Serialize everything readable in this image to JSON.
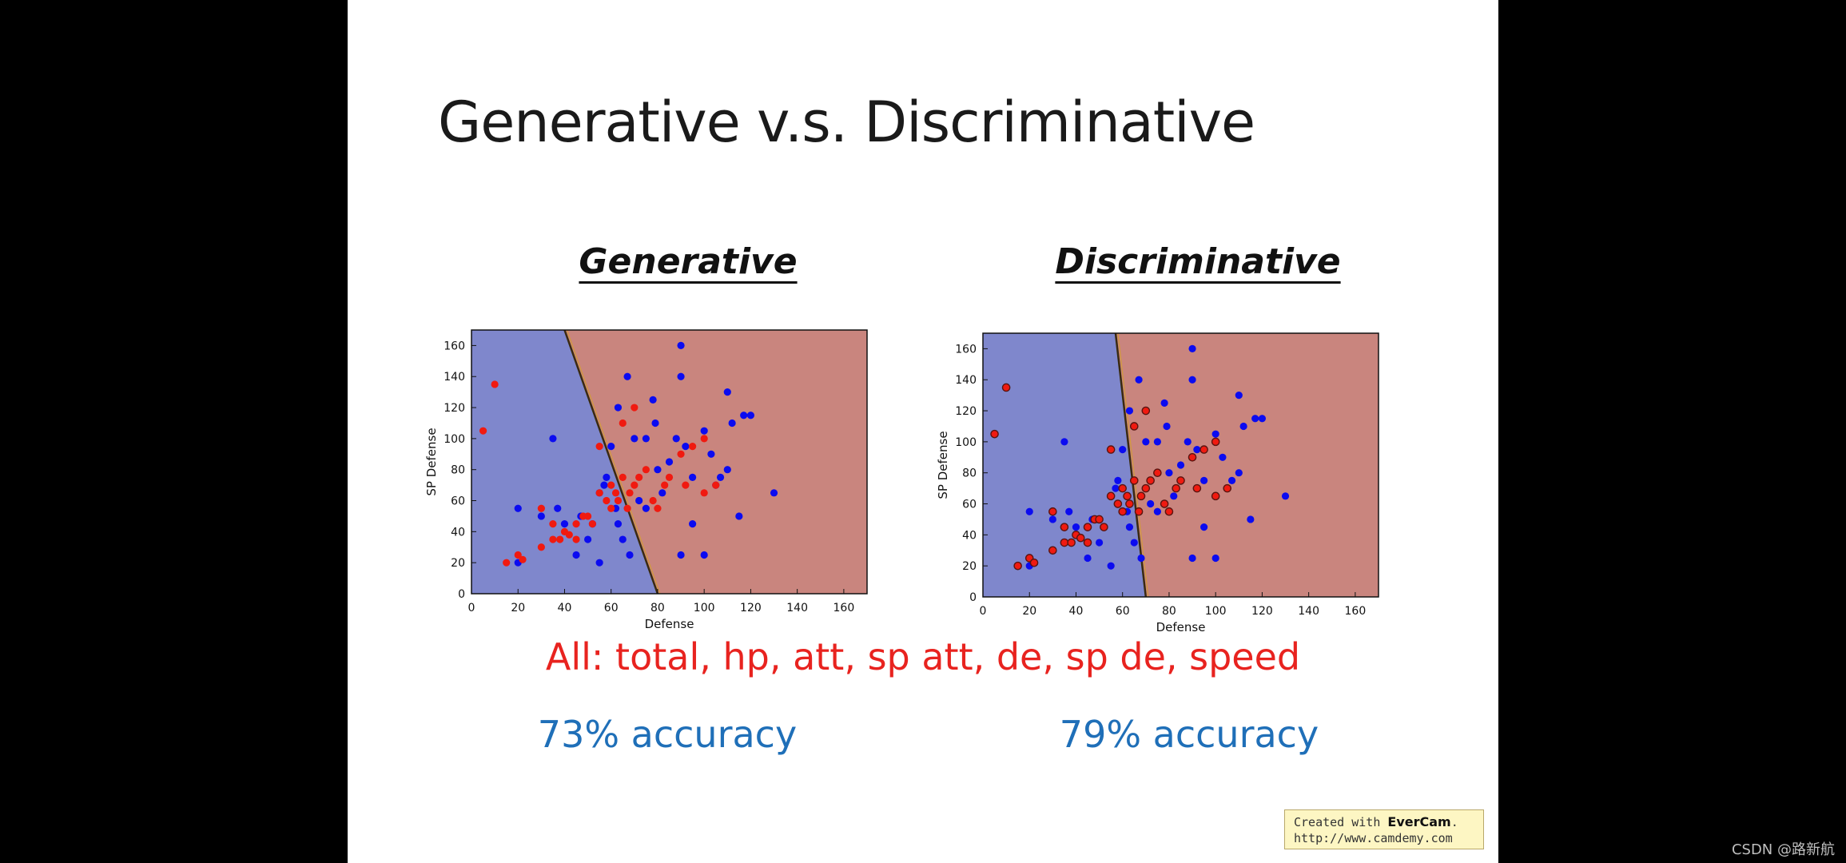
{
  "slide": {
    "title": "Generative v.s. Discriminative",
    "features_text": "All: total, hp, att, sp att, de, sp de, speed",
    "badge_line1_prefix": "Created with ",
    "badge_brand": "EverCam",
    "badge_line1_suffix": ".",
    "badge_url": "http://www.camdemy.com",
    "watermark": "CSDN @路新航"
  },
  "colors": {
    "blue_region": "#7f87cc",
    "red_region": "#c9857e",
    "blue_point": "#0b0bf0",
    "red_point": "#f01a10",
    "accuracy_text": "#1f6fb8",
    "features_text": "#e8231f"
  },
  "chart_data": [
    {
      "type": "scatter",
      "title": "Generative",
      "accuracy_label": "73% accuracy",
      "xlabel": "Defense",
      "ylabel": "SP Defense",
      "xlim": [
        0,
        170
      ],
      "ylim": [
        0,
        170
      ],
      "xticks": [
        "0",
        "20",
        "40",
        "60",
        "80",
        "100",
        "120",
        "140",
        "160"
      ],
      "yticks": [
        "0",
        "20",
        "40",
        "60",
        "80",
        "100",
        "120",
        "140",
        "160"
      ],
      "decision_boundary": [
        [
          40,
          170
        ],
        [
          80,
          0
        ]
      ],
      "regions": {
        "left": "blue",
        "right": "red"
      },
      "series": [
        {
          "name": "class blue",
          "color": "blue",
          "points": [
            [
              20,
              20
            ],
            [
              20,
              55
            ],
            [
              30,
              50
            ],
            [
              35,
              100
            ],
            [
              37,
              55
            ],
            [
              40,
              45
            ],
            [
              45,
              25
            ],
            [
              47,
              50
            ],
            [
              50,
              35
            ],
            [
              52,
              45
            ],
            [
              55,
              20
            ],
            [
              55,
              65
            ],
            [
              57,
              70
            ],
            [
              58,
              75
            ],
            [
              60,
              95
            ],
            [
              62,
              55
            ],
            [
              63,
              120
            ],
            [
              63,
              45
            ],
            [
              65,
              35
            ],
            [
              67,
              140
            ],
            [
              68,
              25
            ],
            [
              70,
              100
            ],
            [
              72,
              60
            ],
            [
              75,
              100
            ],
            [
              75,
              55
            ],
            [
              78,
              125
            ],
            [
              79,
              110
            ],
            [
              80,
              80
            ],
            [
              82,
              65
            ],
            [
              85,
              85
            ],
            [
              88,
              100
            ],
            [
              90,
              160
            ],
            [
              90,
              140
            ],
            [
              90,
              25
            ],
            [
              92,
              95
            ],
            [
              95,
              45
            ],
            [
              95,
              75
            ],
            [
              100,
              25
            ],
            [
              100,
              105
            ],
            [
              103,
              90
            ],
            [
              105,
              70
            ],
            [
              107,
              75
            ],
            [
              110,
              130
            ],
            [
              110,
              80
            ],
            [
              112,
              110
            ],
            [
              115,
              50
            ],
            [
              117,
              115
            ],
            [
              120,
              115
            ],
            [
              130,
              65
            ]
          ]
        },
        {
          "name": "class red",
          "color": "red",
          "points": [
            [
              5,
              105
            ],
            [
              10,
              135
            ],
            [
              15,
              20
            ],
            [
              20,
              25
            ],
            [
              22,
              22
            ],
            [
              30,
              30
            ],
            [
              30,
              55
            ],
            [
              35,
              35
            ],
            [
              35,
              45
            ],
            [
              38,
              35
            ],
            [
              40,
              40
            ],
            [
              42,
              38
            ],
            [
              45,
              45
            ],
            [
              45,
              35
            ],
            [
              48,
              50
            ],
            [
              50,
              50
            ],
            [
              52,
              45
            ],
            [
              55,
              95
            ],
            [
              55,
              65
            ],
            [
              58,
              60
            ],
            [
              60,
              55
            ],
            [
              60,
              70
            ],
            [
              62,
              65
            ],
            [
              63,
              60
            ],
            [
              65,
              110
            ],
            [
              65,
              75
            ],
            [
              67,
              55
            ],
            [
              68,
              65
            ],
            [
              70,
              70
            ],
            [
              70,
              120
            ],
            [
              72,
              75
            ],
            [
              75,
              80
            ],
            [
              78,
              60
            ],
            [
              80,
              55
            ],
            [
              83,
              70
            ],
            [
              85,
              75
            ],
            [
              90,
              90
            ],
            [
              92,
              70
            ],
            [
              95,
              95
            ],
            [
              100,
              65
            ],
            [
              100,
              100
            ],
            [
              105,
              70
            ]
          ]
        }
      ]
    },
    {
      "type": "scatter",
      "title": "Discriminative",
      "accuracy_label": "79% accuracy",
      "xlabel": "Defense",
      "ylabel": "SP Defense",
      "xlim": [
        0,
        170
      ],
      "ylim": [
        0,
        170
      ],
      "xticks": [
        "0",
        "20",
        "40",
        "60",
        "80",
        "100",
        "120",
        "140",
        "160"
      ],
      "yticks": [
        "0",
        "20",
        "40",
        "60",
        "80",
        "100",
        "120",
        "140",
        "160"
      ],
      "decision_boundary": [
        [
          57,
          170
        ],
        [
          70,
          0
        ]
      ],
      "regions": {
        "left": "blue",
        "right": "red"
      },
      "series": [
        {
          "name": "class blue",
          "color": "blue",
          "points": [
            [
              20,
              20
            ],
            [
              20,
              55
            ],
            [
              30,
              50
            ],
            [
              35,
              100
            ],
            [
              37,
              55
            ],
            [
              40,
              45
            ],
            [
              45,
              25
            ],
            [
              47,
              50
            ],
            [
              50,
              35
            ],
            [
              52,
              45
            ],
            [
              55,
              20
            ],
            [
              55,
              65
            ],
            [
              57,
              70
            ],
            [
              58,
              75
            ],
            [
              60,
              95
            ],
            [
              62,
              55
            ],
            [
              63,
              120
            ],
            [
              63,
              45
            ],
            [
              65,
              35
            ],
            [
              67,
              140
            ],
            [
              68,
              25
            ],
            [
              70,
              100
            ],
            [
              72,
              60
            ],
            [
              75,
              100
            ],
            [
              75,
              55
            ],
            [
              78,
              125
            ],
            [
              79,
              110
            ],
            [
              80,
              80
            ],
            [
              82,
              65
            ],
            [
              85,
              85
            ],
            [
              88,
              100
            ],
            [
              90,
              160
            ],
            [
              90,
              140
            ],
            [
              90,
              25
            ],
            [
              92,
              95
            ],
            [
              95,
              45
            ],
            [
              95,
              75
            ],
            [
              100,
              25
            ],
            [
              100,
              105
            ],
            [
              103,
              90
            ],
            [
              105,
              70
            ],
            [
              107,
              75
            ],
            [
              110,
              130
            ],
            [
              110,
              80
            ],
            [
              112,
              110
            ],
            [
              115,
              50
            ],
            [
              117,
              115
            ],
            [
              120,
              115
            ],
            [
              130,
              65
            ]
          ]
        },
        {
          "name": "class red",
          "color": "red",
          "points": [
            [
              5,
              105
            ],
            [
              10,
              135
            ],
            [
              15,
              20
            ],
            [
              20,
              25
            ],
            [
              22,
              22
            ],
            [
              30,
              30
            ],
            [
              30,
              55
            ],
            [
              35,
              35
            ],
            [
              35,
              45
            ],
            [
              38,
              35
            ],
            [
              40,
              40
            ],
            [
              42,
              38
            ],
            [
              45,
              45
            ],
            [
              45,
              35
            ],
            [
              48,
              50
            ],
            [
              50,
              50
            ],
            [
              52,
              45
            ],
            [
              55,
              95
            ],
            [
              55,
              65
            ],
            [
              58,
              60
            ],
            [
              60,
              55
            ],
            [
              60,
              70
            ],
            [
              62,
              65
            ],
            [
              63,
              60
            ],
            [
              65,
              110
            ],
            [
              65,
              75
            ],
            [
              67,
              55
            ],
            [
              68,
              65
            ],
            [
              70,
              70
            ],
            [
              70,
              120
            ],
            [
              72,
              75
            ],
            [
              75,
              80
            ],
            [
              78,
              60
            ],
            [
              80,
              55
            ],
            [
              83,
              70
            ],
            [
              85,
              75
            ],
            [
              90,
              90
            ],
            [
              92,
              70
            ],
            [
              95,
              95
            ],
            [
              100,
              65
            ],
            [
              100,
              100
            ],
            [
              105,
              70
            ]
          ]
        }
      ]
    }
  ]
}
